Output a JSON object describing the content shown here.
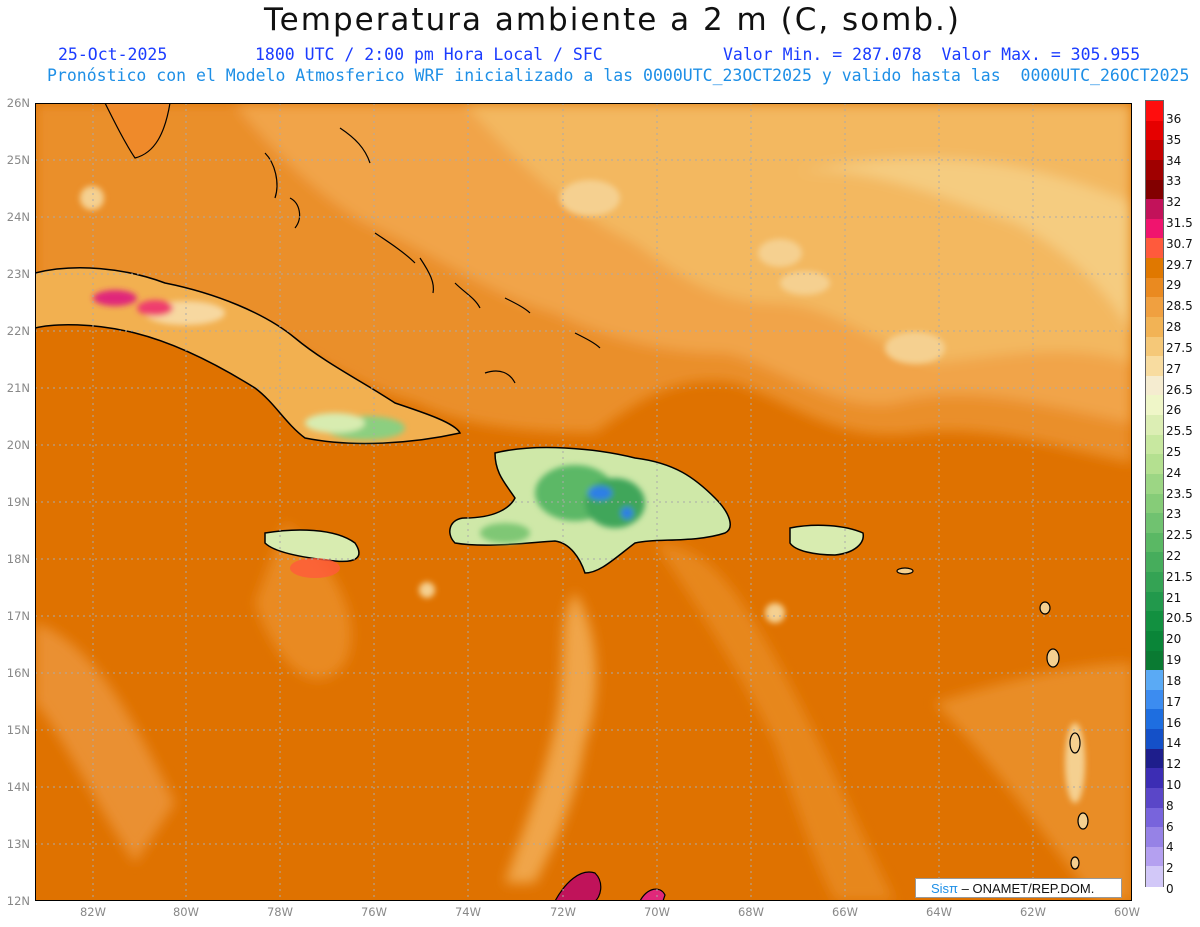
{
  "header": {
    "title": "Temperatura ambiente a 2 m (C, somb.)",
    "date": "25-Oct-2025",
    "time": "1800 UTC / 2:00 pm Hora Local / SFC",
    "range": "Valor Min. = 287.078  Valor Max. = 305.955",
    "model_line": "Pronóstico con el Modelo Atmosferico WRF inicializado a las 0000UTC_23OCT2025 y valido hasta las  0000UTC_26OCT2025"
  },
  "map": {
    "lat_labels": [
      "26N",
      "25N",
      "24N",
      "23N",
      "22N",
      "21N",
      "20N",
      "19N",
      "18N",
      "17N",
      "16N",
      "15N",
      "14N",
      "13N",
      "12N"
    ],
    "lon_labels": [
      "82W",
      "80W",
      "78W",
      "76W",
      "74W",
      "72W",
      "70W",
      "68W",
      "66W",
      "64W",
      "62W",
      "60W"
    ],
    "lat_range": [
      12,
      26
    ],
    "lon_range": [
      -83.2,
      -59.8
    ]
  },
  "colorbar": {
    "labels": [
      "36",
      "35",
      "34",
      "33",
      "32",
      "31.5",
      "30.7",
      "29.7",
      "29",
      "28.5",
      "28",
      "27.5",
      "27",
      "26.5",
      "26",
      "25.5",
      "25",
      "24",
      "23.5",
      "23",
      "22.5",
      "22",
      "21.5",
      "21",
      "20.5",
      "20",
      "19",
      "18",
      "17",
      "16",
      "14",
      "12",
      "10",
      "8",
      "6",
      "4",
      "2",
      "0"
    ],
    "colors": [
      "#ff0d0d",
      "#e60000",
      "#c40000",
      "#a00000",
      "#820000",
      "#c2125a",
      "#f0146e",
      "#ff5a3c",
      "#e07800",
      "#ea8a20",
      "#f0a040",
      "#f2b355",
      "#f5c878",
      "#f8dca0",
      "#f5ecd0",
      "#eff6c8",
      "#dceeb4",
      "#c8e8a0",
      "#b4e090",
      "#9cd684",
      "#86cc78",
      "#70c270",
      "#5ab864",
      "#46ad5c",
      "#34a354",
      "#22994c",
      "#129040",
      "#0a8538",
      "#0a7a32",
      "#5aaaf5",
      "#3c8cf0",
      "#1e6ee0",
      "#1450c8",
      "#1e1e8c",
      "#3c2db4",
      "#5a46c8",
      "#7864dc",
      "#9682e6",
      "#b4a0f0",
      "#d2c8f8"
    ]
  },
  "credit": {
    "brand": "Sisπ",
    "text": "– ONAMET/REP.DOM."
  }
}
